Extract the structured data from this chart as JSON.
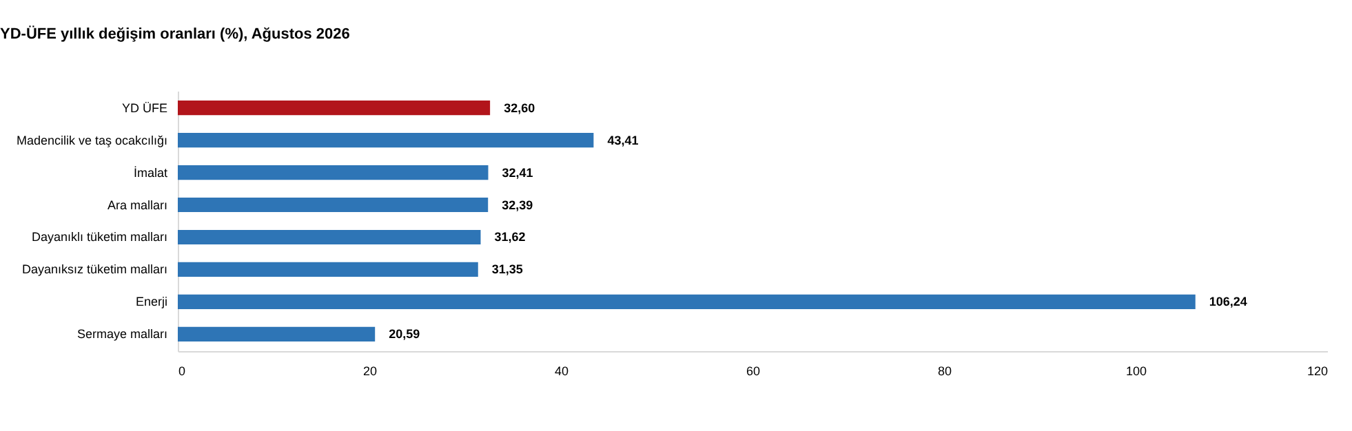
{
  "chart_data": {
    "type": "bar",
    "orientation": "horizontal",
    "title": "YD-ÜFE yıllık değişim oranları (%), Ağustos 2026",
    "categories": [
      "YD ÜFE",
      "Madencilik ve taş ocakcılığı",
      "İmalat",
      "Ara malları",
      "Dayanıklı tüketim malları",
      "Dayanıksız tüketim malları",
      "Enerji",
      "Sermaye malları"
    ],
    "values": [
      32.6,
      43.41,
      32.41,
      32.39,
      31.62,
      31.35,
      106.24,
      20.59
    ],
    "colors": [
      "#b2151b",
      "#2e75b6",
      "#2e75b6",
      "#2e75b6",
      "#2e75b6",
      "#2e75b6",
      "#2e75b6",
      "#2e75b6"
    ],
    "value_labels": [
      "32,60",
      "43,41",
      "32,41",
      "32,39",
      "31,62",
      "31,35",
      "106,24",
      "20,59"
    ],
    "xlim": [
      0,
      120
    ],
    "xticks": [
      0,
      20,
      40,
      60,
      80,
      100,
      120
    ],
    "grid": false
  }
}
